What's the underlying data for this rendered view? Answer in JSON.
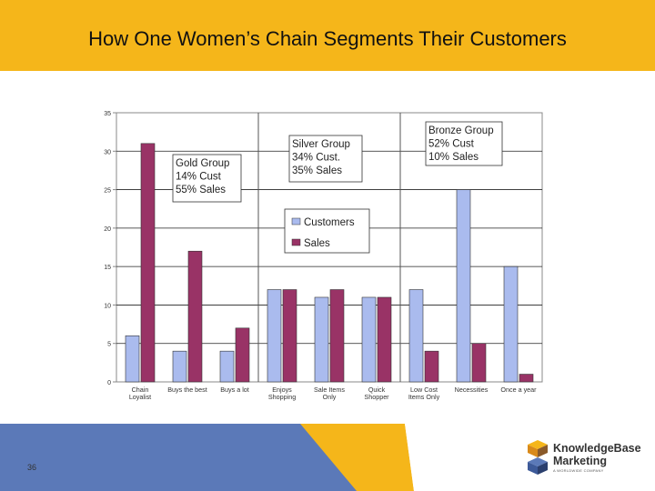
{
  "slide": {
    "title": "How One Women’s Chain Segments Their Customers",
    "slide_number": "36"
  },
  "logo": {
    "name_line1": "KnowledgeBase",
    "name_line2": "Marketing",
    "tagline": "A WORLDWIDE COMPANY",
    "icon": "stacked-cubes-icon"
  },
  "colors": {
    "header": "#f5b61a",
    "customers": "#aabbee",
    "sales": "#993366",
    "footer_blue": "#5b79b8",
    "footer_yellow": "#f5b61a"
  },
  "chart_data": {
    "type": "bar",
    "title": "",
    "xlabel": "",
    "ylabel": "",
    "ylim": [
      0,
      35
    ],
    "yticks": [
      0,
      5,
      10,
      15,
      20,
      25,
      30,
      35
    ],
    "grid": true,
    "legend_position": "center",
    "categories": [
      [
        "Chain",
        "Loyalist"
      ],
      [
        "Buys the best"
      ],
      [
        "Buys a lot"
      ],
      [
        "Enjoys",
        "Shopping"
      ],
      [
        "Sale Items",
        "Only"
      ],
      [
        "Quick",
        "Shopper"
      ],
      [
        "Low Cost",
        "Items Only"
      ],
      [
        "Necessities"
      ],
      [
        "Once a year"
      ]
    ],
    "series": [
      {
        "name": "Customers",
        "color": "#aabbee",
        "values": [
          6,
          4,
          4,
          12,
          11,
          11,
          12,
          25,
          15
        ]
      },
      {
        "name": "Sales",
        "color": "#993366",
        "values": [
          31,
          17,
          7,
          12,
          12,
          11,
          4,
          5,
          1
        ]
      }
    ],
    "annotations": [
      {
        "lines": [
          "Gold Group",
          "14% Cust",
          "55% Sales"
        ]
      },
      {
        "lines": [
          "Silver Group",
          "34% Cust.",
          "35% Sales"
        ]
      },
      {
        "lines": [
          "Bronze Group",
          "52% Cust",
          "10% Sales"
        ]
      }
    ],
    "group_dividers_after_category": [
      2,
      5
    ]
  }
}
